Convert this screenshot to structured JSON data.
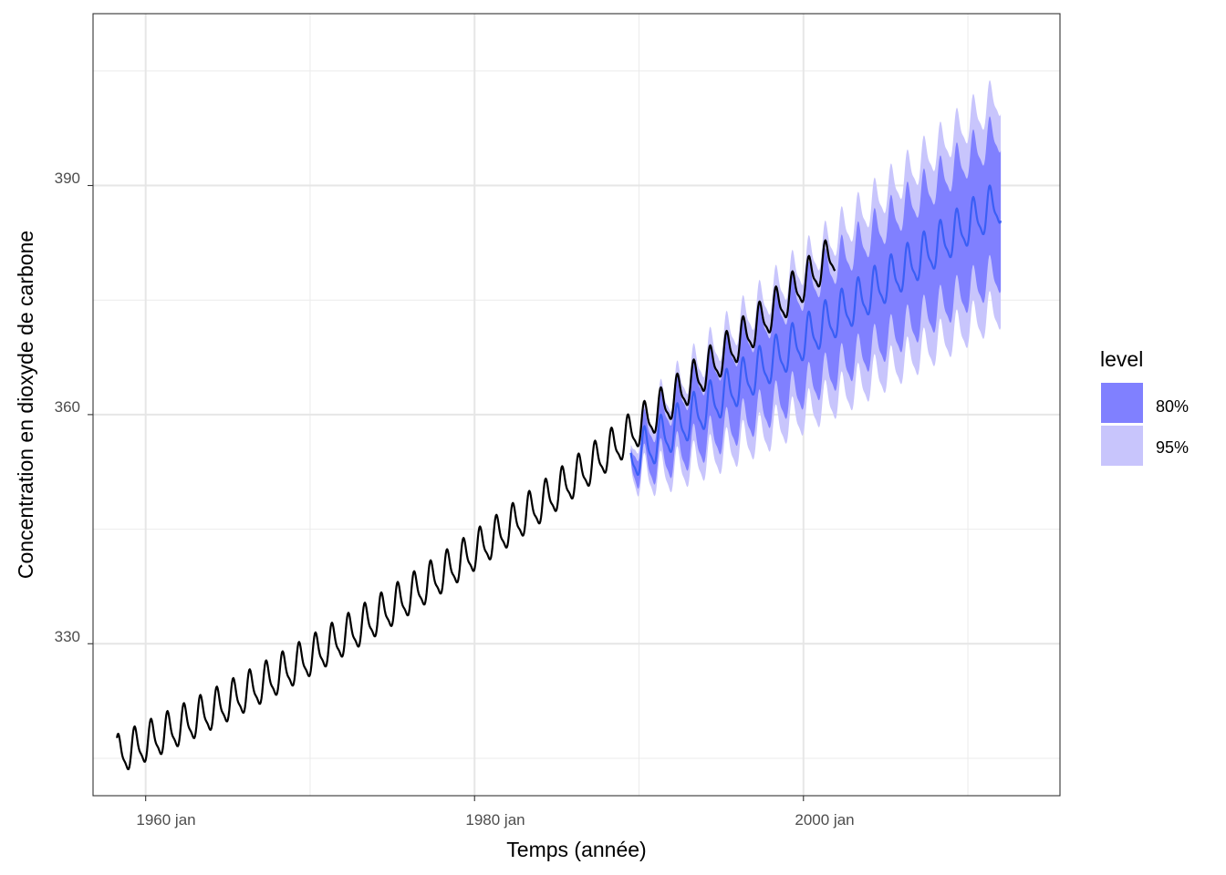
{
  "chart_data": {
    "type": "line",
    "title": "",
    "xlabel": "Temps (année)",
    "ylabel": "Concentration en dioxyde de carbone",
    "x_ticks": [
      "1960 jan",
      "1980 jan",
      "2000 jan"
    ],
    "y_ticks": [
      "330",
      "360",
      "390"
    ],
    "xlim": [
      1956.8,
      2015.6
    ],
    "ylim": [
      310.1,
      412.5
    ],
    "grid": true,
    "legend": {
      "title": "level",
      "position": "right",
      "entries": [
        {
          "label": "80%",
          "color": "#8080ff"
        },
        {
          "label": "95%",
          "color": "#c8c5fc"
        }
      ]
    },
    "series": [
      {
        "kind": "observed",
        "color": "#000000",
        "x_start": 1958.25,
        "x_end": 2001.92,
        "trend_start": 315.2,
        "trend_slope_per_year": 0.95,
        "trend_curvature": 0.0128,
        "seasonal_amplitude": 2.8,
        "peak_month": 5
      },
      {
        "kind": "forecast",
        "color": "#3a5ef5",
        "x_start": 1989.5,
        "x_end": 2012.0,
        "mean_start": 354.0,
        "mean_slope_per_year": 1.5,
        "seasonal_amplitude": 3.1,
        "interval_80_halfwidth": [
          0.6,
          9.2
        ],
        "interval_95_halfwidth": [
          1.0,
          14.0
        ]
      }
    ]
  }
}
